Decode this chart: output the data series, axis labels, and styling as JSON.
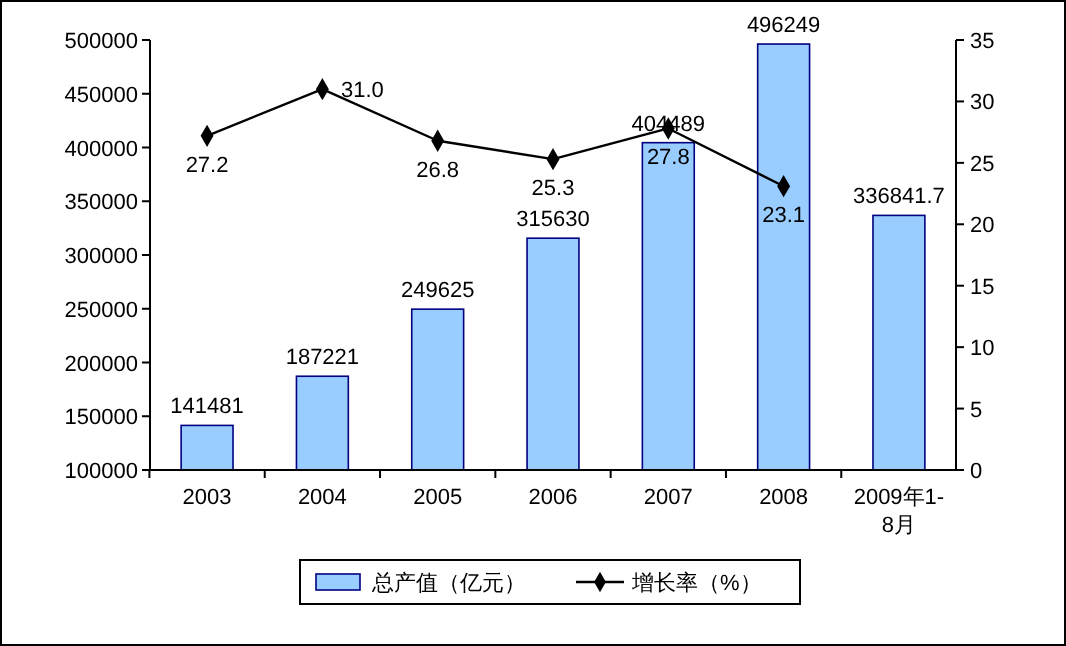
{
  "chart_data": {
    "type": "bar",
    "categories": [
      "2003",
      "2004",
      "2005",
      "2006",
      "2007",
      "2008",
      "2009年1-8月"
    ],
    "series": [
      {
        "name": "总产值（亿元）",
        "color": "#99ccff",
        "values": [
          141481,
          187221,
          249625,
          315630,
          404489,
          496249,
          336841.7
        ],
        "value_labels": [
          "141481",
          "187221",
          "249625",
          "315630",
          "404489",
          "496249",
          "336841.7"
        ]
      },
      {
        "name": "增长率（%）",
        "type": "line",
        "axis": "y2",
        "color": "#000000",
        "marker": "diamond",
        "values": [
          27.2,
          31.0,
          26.8,
          25.3,
          27.8,
          23.1,
          null
        ],
        "value_labels": [
          "27.2",
          "31.0",
          "26.8",
          "25.3",
          "27.8",
          "23.1",
          null
        ]
      }
    ],
    "ylim": [
      100000,
      500000
    ],
    "yticks": [
      100000,
      150000,
      200000,
      250000,
      300000,
      350000,
      400000,
      450000,
      500000
    ],
    "y2lim": [
      0,
      35
    ],
    "y2ticks": [
      0,
      5,
      10,
      15,
      20,
      25,
      30,
      35
    ],
    "legend": "bottom",
    "grid": false
  }
}
